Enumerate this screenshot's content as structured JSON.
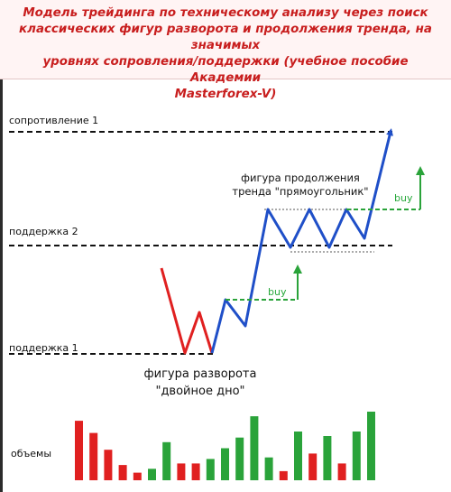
{
  "header": {
    "title_line1": "Модель трейдинга по техническому анализу через поиск",
    "title_line2": "классических фигур разворота и продолжения тренда, на значимых",
    "title_line3": "уровнях сопровления/поддержки (учебное пособие Академии",
    "title_line4": "Masterforex-V)"
  },
  "levels": {
    "resistance1": "сопротивление 1",
    "support2": "поддержка 2",
    "support1": "поддержка 1"
  },
  "figures": {
    "continuation_line1": "фигура продолжения",
    "continuation_line2": "тренда \"прямоугольник\"",
    "reversal_line1": "фигура разворота",
    "reversal_line2": "\"двойное дно\""
  },
  "signals": {
    "buy1": "buy",
    "buy2": "buy"
  },
  "volumes": {
    "label": "объемы",
    "bars": [
      {
        "value": 78,
        "color": "red"
      },
      {
        "value": 62,
        "color": "red"
      },
      {
        "value": 40,
        "color": "red"
      },
      {
        "value": 20,
        "color": "red"
      },
      {
        "value": 10,
        "color": "red"
      },
      {
        "value": 15,
        "color": "green"
      },
      {
        "value": 50,
        "color": "green"
      },
      {
        "value": 22,
        "color": "red"
      },
      {
        "value": 22,
        "color": "red"
      },
      {
        "value": 28,
        "color": "green"
      },
      {
        "value": 42,
        "color": "green"
      },
      {
        "value": 56,
        "color": "green"
      },
      {
        "value": 84,
        "color": "green"
      },
      {
        "value": 30,
        "color": "green"
      },
      {
        "value": 12,
        "color": "red"
      },
      {
        "value": 64,
        "color": "green"
      },
      {
        "value": 35,
        "color": "red"
      },
      {
        "value": 58,
        "color": "green"
      },
      {
        "value": 22,
        "color": "red"
      },
      {
        "value": 64,
        "color": "green"
      },
      {
        "value": 90,
        "color": "green"
      }
    ]
  },
  "colors": {
    "red": "#e02020",
    "green": "#2aa33a",
    "blue": "#1f4fc8",
    "title": "#c81e1e"
  }
}
